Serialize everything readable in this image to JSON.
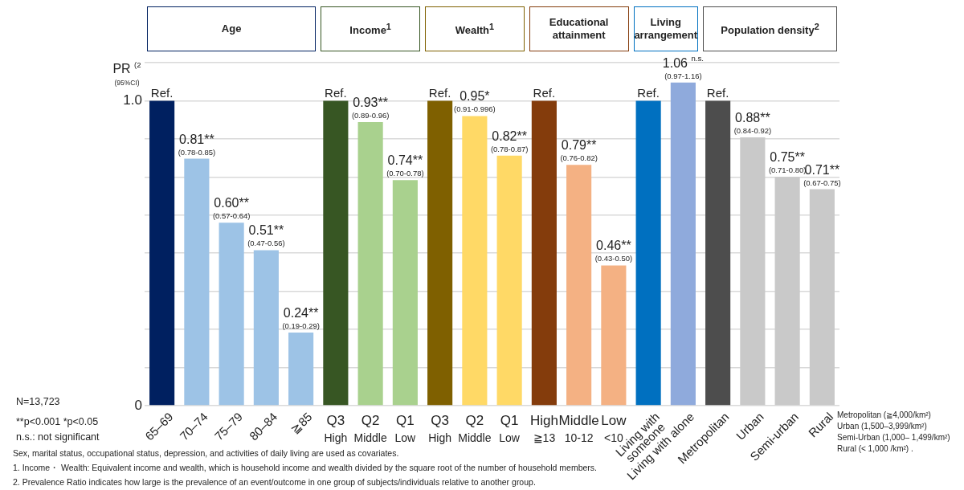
{
  "chart_data": {
    "type": "bar",
    "ylabel": "PR $^{(2}$\n(95%CI)",
    "categories": [
      "65–69",
      "70–74",
      "75–79",
      "80–84",
      "≧85",
      "Q3\nHigh",
      "Q2\nMiddle",
      "Q1\nLow",
      "Q3\nHigh",
      "Q2\nMiddle",
      "Q1\nLow",
      "High\n≧13",
      "Middle\n10-12",
      "Low\n<10",
      "Living with\nsomeone",
      "Living with alone",
      "Metropolitan",
      "Urban",
      "Semi-urban",
      "Rural"
    ],
    "values": [
      1,
      0.81,
      0.6,
      0.51,
      0.24,
      1,
      0.93,
      0.74,
      1,
      0.95,
      0.82,
      1,
      0.79,
      0.46,
      1,
      1.06,
      1,
      0.88,
      0.75,
      0.71
    ],
    "colors": [
      "#002060",
      "#9dc3e6",
      "#9dc3e6",
      "#9dc3e6",
      "#9dc3e6",
      "#375623",
      "#a9d18e",
      "#a9d18e",
      "#7f6000",
      "#ffd966",
      "#ffd966",
      "#843c0c",
      "#f4b183",
      "#f4b183",
      "#0070c0",
      "#8faadc",
      "#4d4d4d",
      "#c9c9c9",
      "#c9c9c9",
      "#c9c9c9"
    ],
    "value_labels": [
      "Ref.",
      "0.81**\n(0.78-0.85)",
      "0.60**\n(0.57-0.64)",
      "0.51**\n(0.47-0.56)",
      "0.24**\n(0.19-0.29)",
      "Ref.",
      "0.93**\n(0.89-0.96)",
      "0.74**\n(0.70-0.78)",
      "Ref.",
      "0.95*\n(0.91-0.996)",
      "0.82**\n(0.78-0.87)",
      "Ref.",
      "0.79**\n(0.76-0.82)",
      "0.46**\n(0.43-0.50)",
      "Ref.",
      "1.06 $^{n.s.}$\n(0.97-1.16)",
      "Ref.",
      "0.88**\n(0.84-0.92)",
      "0.75**\n(0.71-0.80)",
      "0.71**\n(0.67-0.75)"
    ],
    "ylim": [
      0,
      1.125
    ],
    "yticks": [
      {
        "value": 0,
        "label": "0"
      },
      {
        "value": 0.125,
        "label": null
      },
      {
        "value": 0.25,
        "label": null
      },
      {
        "value": 0.375,
        "label": null
      },
      {
        "value": 0.5,
        "label": null
      },
      {
        "value": 0.625,
        "label": null
      },
      {
        "value": 0.75,
        "label": null
      },
      {
        "value": 0.875,
        "label": null
      },
      {
        "value": 1,
        "label": "1.0"
      },
      {
        "value": 1.125,
        "label": null
      }
    ],
    "grid": "y",
    "annotations": [
      "Age",
      "Income$^{1}$",
      "Wealth$^{1}$",
      "Educational attainment",
      "Living arrangement",
      "Population density$^{2}$",
      "N=13,723",
      "**p<0.001 *p<0.05",
      "n.s.: not significant",
      "Metropolitan (≧4,000/km²)",
      "Urban (1,500–3,999/km²)",
      "Semi-Urban (1,000– 1,499/km²)",
      "Rural (< 1,000 /km²) .",
      "Sex, marital status, occupational status, depression, and activities of daily living are used as covariates.",
      "1. Income・ Wealth:  Equivalent income and wealth, which is household income and wealth divided by the square root of the number of household members.",
      "2. Prevalence Ratio indicates how large is the prevalence of an event/outcome in one group of subjects/individuals relative to another group."
    ]
  }
}
